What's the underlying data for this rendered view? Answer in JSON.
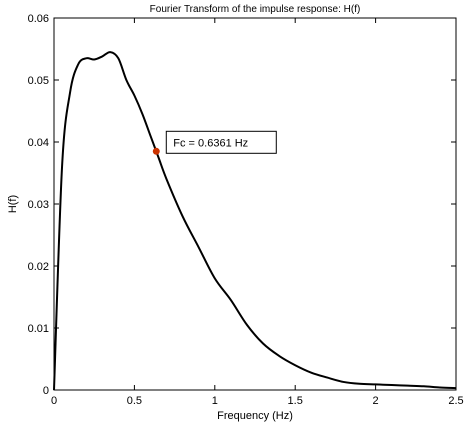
{
  "chart_data": {
    "type": "line",
    "title": "Fourier Transform of the impulse response: H(f)",
    "xlabel": "Frequency (Hz)",
    "ylabel": "H(f)",
    "xlim": [
      0,
      2.5
    ],
    "ylim": [
      0,
      0.06
    ],
    "xticks": [
      0,
      0.5,
      1,
      1.5,
      2,
      2.5
    ],
    "xtick_labels": [
      "0",
      "0.5",
      "1",
      "1.5",
      "2",
      "2.5"
    ],
    "yticks": [
      0,
      0.01,
      0.02,
      0.03,
      0.04,
      0.05,
      0.06
    ],
    "ytick_labels": [
      "0",
      "0.01",
      "0.02",
      "0.03",
      "0.04",
      "0.05",
      "0.06"
    ],
    "grid": false,
    "series": [
      {
        "color": "#000000",
        "x": [
          0,
          0.05,
          0.1,
          0.15,
          0.2,
          0.25,
          0.3,
          0.35,
          0.4,
          0.45,
          0.5,
          0.55,
          0.6,
          0.65,
          0.7,
          0.8,
          0.9,
          1.0,
          1.1,
          1.2,
          1.3,
          1.4,
          1.5,
          1.6,
          1.7,
          1.8,
          1.9,
          2.0,
          2.1,
          2.2,
          2.3,
          2.4,
          2.5
        ],
        "y": [
          0,
          0.036,
          0.048,
          0.0525,
          0.0535,
          0.0533,
          0.0538,
          0.0545,
          0.0535,
          0.05,
          0.0475,
          0.0445,
          0.041,
          0.0375,
          0.034,
          0.028,
          0.023,
          0.018,
          0.0145,
          0.0105,
          0.0075,
          0.0055,
          0.004,
          0.0028,
          0.002,
          0.0013,
          0.001,
          0.0009,
          0.0008,
          0.0007,
          0.0006,
          0.0004,
          0.0003
        ]
      }
    ],
    "marker": {
      "x": 0.6361,
      "y": 0.0385,
      "color": "#cc3300"
    },
    "annotation": {
      "text": "Fc =  0.6361 Hz"
    }
  }
}
